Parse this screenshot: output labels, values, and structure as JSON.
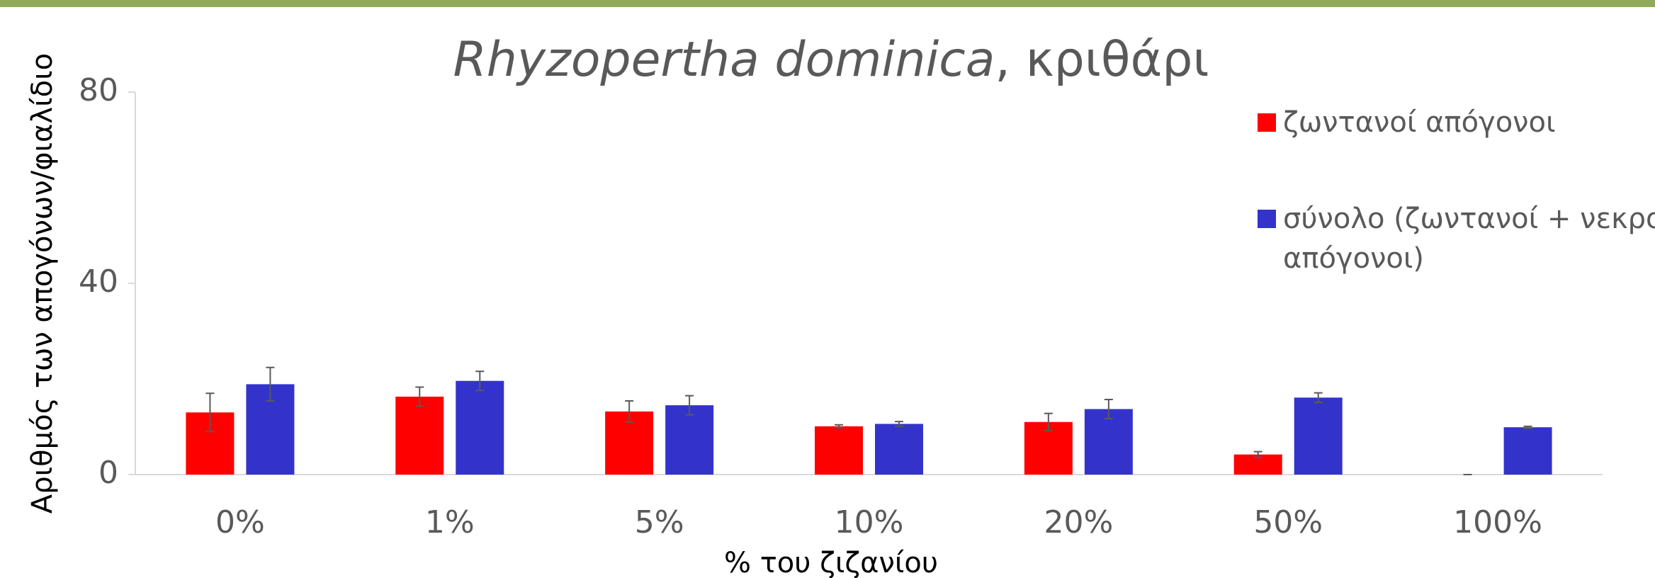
{
  "chart_data": {
    "type": "bar",
    "title": [
      "Rhyzopertha dominica",
      ", κριθάρι"
    ],
    "xlabel": "% του ζιζανίου",
    "ylabel": "Αριθμός των απογόνων/φιαλίδιο",
    "categories": [
      "0%",
      "1%",
      "5%",
      "10%",
      "20%",
      "50%",
      "100%"
    ],
    "series": [
      {
        "name": "ζωντανοί απόγονοι",
        "color": "#ff0000",
        "values": [
          13.0,
          16.3,
          13.2,
          10.1,
          11.0,
          4.2,
          0
        ],
        "errors": [
          4.0,
          2.0,
          2.2,
          0.3,
          1.8,
          0.6,
          0
        ]
      },
      {
        "name": "σύνολο (ζωντανοί + νεκροί απόγονοι)",
        "color": "#3333cc",
        "values": [
          18.9,
          19.6,
          14.5,
          10.6,
          13.7,
          16.1,
          9.9
        ],
        "errors": [
          3.5,
          2.0,
          2.0,
          0.5,
          2.0,
          1.0,
          0.2
        ]
      }
    ],
    "ylim": [
      0,
      80
    ],
    "yticks": [
      0,
      40,
      80
    ],
    "grid": false,
    "legend": "upper right"
  }
}
